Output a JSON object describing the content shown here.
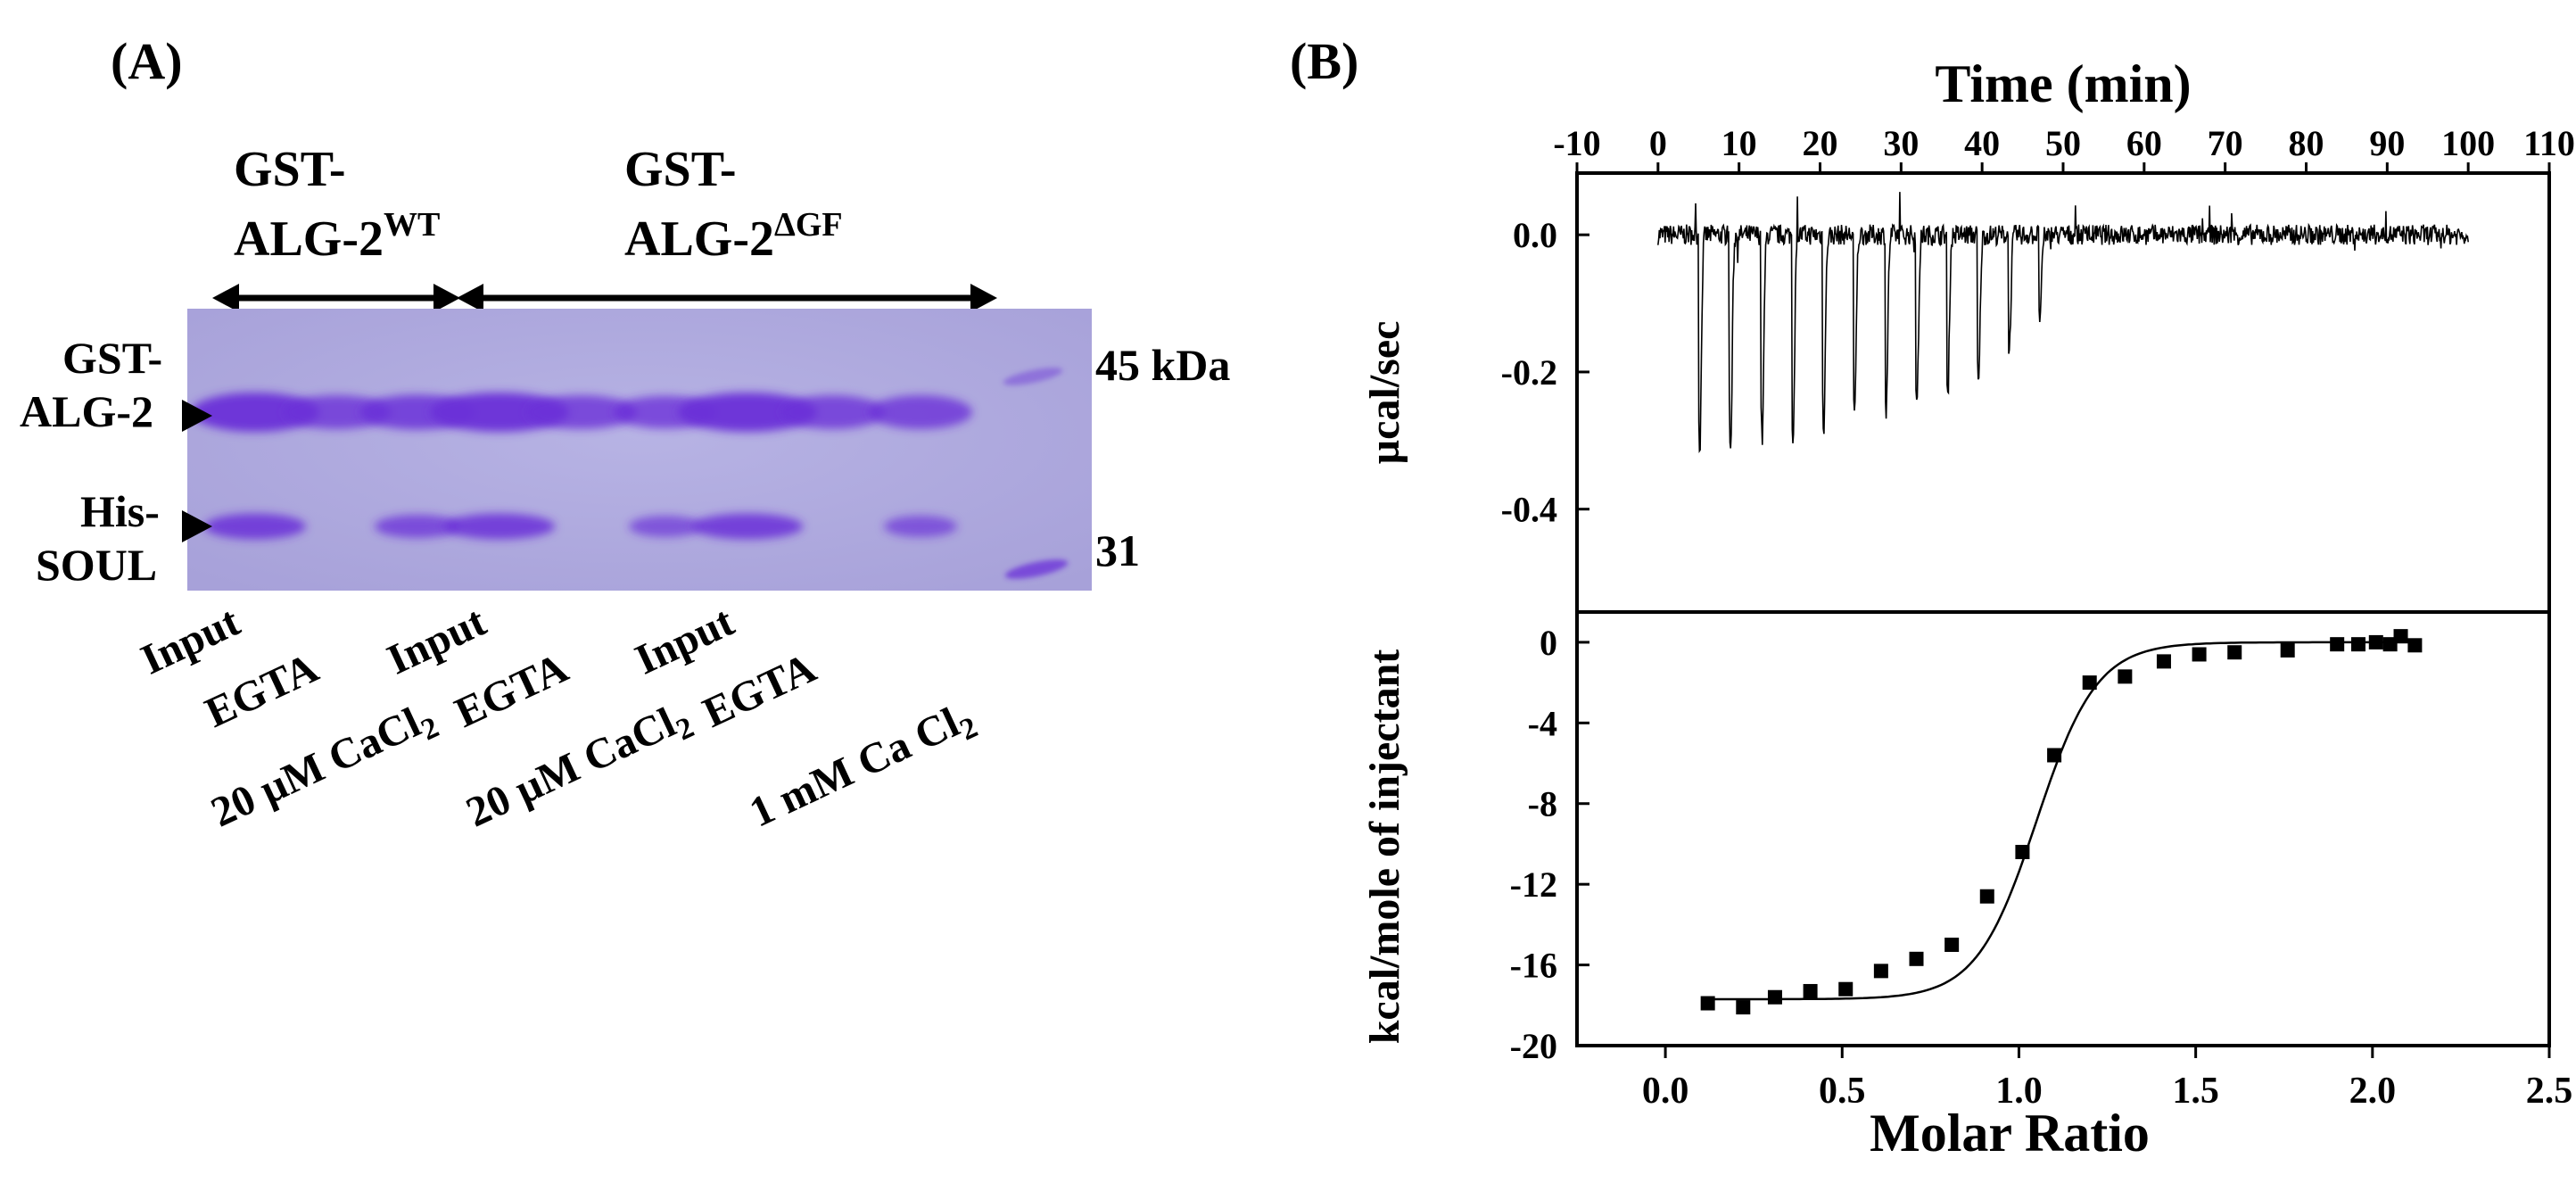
{
  "panel_a": {
    "label": "(A)",
    "group_wt": {
      "prefix": "GST-",
      "main": "ALG-2",
      "sup": "WT"
    },
    "group_dgf": {
      "prefix": "GST-",
      "main": "ALG-2",
      "sup": "ΔGF"
    },
    "band_labels": {
      "gst_line1": "GST-",
      "gst_line2": "ALG-2",
      "his_line1": "His-",
      "his_line2": "SOUL"
    },
    "markers": {
      "top": "45 kDa",
      "bottom": "31"
    },
    "lanes": [
      {
        "label": "Input",
        "gst_intensity": 1.0,
        "his_intensity": 0.85
      },
      {
        "label": "EGTA",
        "gst_intensity": 0.75,
        "his_intensity": 0.0
      },
      {
        "label": "20 µM CaCl",
        "sub": "2",
        "gst_intensity": 0.8,
        "his_intensity": 0.7
      },
      {
        "label": "Input",
        "gst_intensity": 1.0,
        "his_intensity": 0.85
      },
      {
        "label": "EGTA",
        "gst_intensity": 0.75,
        "his_intensity": 0.0
      },
      {
        "label": "20 µM CaCl",
        "sub": "2",
        "gst_intensity": 0.7,
        "his_intensity": 0.6
      },
      {
        "label": "Input",
        "gst_intensity": 1.0,
        "his_intensity": 0.85
      },
      {
        "label": "EGTA",
        "gst_intensity": 0.75,
        "his_intensity": 0.0
      },
      {
        "label": "1 mM Ca Cl",
        "sub": "2",
        "gst_intensity": 0.75,
        "his_intensity": 0.6
      }
    ],
    "ladder": "marker-lane"
  },
  "panel_b": {
    "label": "(B)",
    "colors": {
      "line": "#000000",
      "background": "#ffffff"
    }
  },
  "chart_data": [
    {
      "type": "line",
      "name": "isotherm-raw-power",
      "title": "",
      "xlabel": "Time (min)",
      "ylabel": "µcal/sec",
      "xlim": [
        -10,
        110
      ],
      "ylim": [
        -0.55,
        0.09
      ],
      "xticks": [
        -10,
        0,
        10,
        20,
        30,
        40,
        50,
        60,
        70,
        80,
        90,
        100,
        110
      ],
      "yticks": [
        0.0,
        -0.2,
        -0.4
      ],
      "ytick_labels": [
        "0.0",
        "-0.2",
        "-0.4"
      ],
      "baseline": 0.0,
      "trace_start": 0,
      "trace_end": 100,
      "injections": [
        {
          "time": 5.0,
          "peak": -0.31
        },
        {
          "time": 8.8,
          "peak": -0.32
        },
        {
          "time": 12.7,
          "peak": -0.3
        },
        {
          "time": 16.5,
          "peak": -0.3
        },
        {
          "time": 20.3,
          "peak": -0.28
        },
        {
          "time": 24.1,
          "peak": -0.27
        },
        {
          "time": 28.0,
          "peak": -0.26
        },
        {
          "time": 31.8,
          "peak": -0.25
        },
        {
          "time": 35.6,
          "peak": -0.24
        },
        {
          "time": 39.4,
          "peak": -0.22
        },
        {
          "time": 43.2,
          "peak": -0.17
        },
        {
          "time": 47.0,
          "peak": -0.12
        }
      ]
    },
    {
      "type": "scatter",
      "name": "binding-isotherm",
      "title": "",
      "xlabel": "Molar Ratio",
      "ylabel": "kcal/mole of injectant",
      "xlim": [
        -0.25,
        2.5
      ],
      "ylim": [
        -20,
        1.5
      ],
      "xticks": [
        0.0,
        0.5,
        1.0,
        1.5,
        2.0,
        2.5
      ],
      "xtick_labels": [
        "0.0",
        "0.5",
        "1.0",
        "1.5",
        "2.0",
        "2.5"
      ],
      "yticks": [
        0,
        -4,
        -8,
        -12,
        -16,
        -20
      ],
      "points": [
        {
          "x": 0.12,
          "y": -17.9
        },
        {
          "x": 0.22,
          "y": -18.1
        },
        {
          "x": 0.31,
          "y": -17.6
        },
        {
          "x": 0.41,
          "y": -17.3
        },
        {
          "x": 0.51,
          "y": -17.2
        },
        {
          "x": 0.61,
          "y": -16.3
        },
        {
          "x": 0.71,
          "y": -15.7
        },
        {
          "x": 0.81,
          "y": -15.0
        },
        {
          "x": 0.91,
          "y": -12.6
        },
        {
          "x": 1.01,
          "y": -10.4
        },
        {
          "x": 1.1,
          "y": -5.6
        },
        {
          "x": 1.2,
          "y": -2.0
        },
        {
          "x": 1.3,
          "y": -1.7
        },
        {
          "x": 1.41,
          "y": -0.95
        },
        {
          "x": 1.51,
          "y": -0.6
        },
        {
          "x": 1.61,
          "y": -0.5
        },
        {
          "x": 1.76,
          "y": -0.4
        },
        {
          "x": 1.9,
          "y": -0.1
        },
        {
          "x": 1.96,
          "y": -0.1
        },
        {
          "x": 2.01,
          "y": 0.0
        },
        {
          "x": 2.05,
          "y": -0.1
        },
        {
          "x": 2.08,
          "y": 0.3
        },
        {
          "x": 2.12,
          "y": -0.15
        }
      ],
      "fit": {
        "model": "one-site",
        "low": -17.7,
        "high": 0.0,
        "x_half": 1.05,
        "slope": 0.085
      }
    }
  ]
}
